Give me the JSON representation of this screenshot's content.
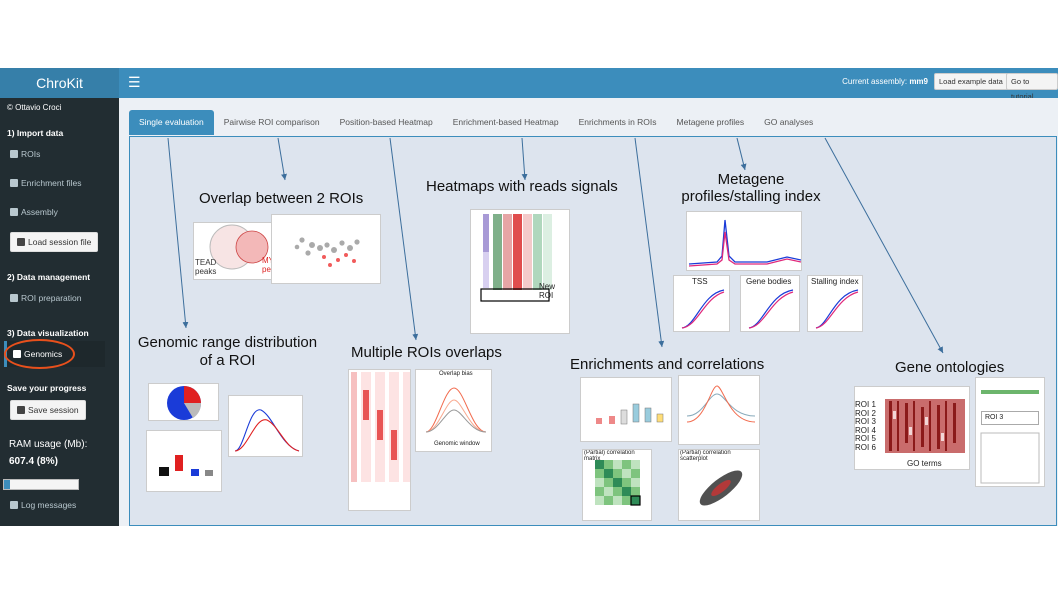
{
  "app": {
    "title": "ChroKit",
    "copyright": "© Ottavio Croci"
  },
  "sidebar": {
    "sections": [
      {
        "label": "1) Import data"
      },
      {
        "label": "2) Data management"
      },
      {
        "label": "3) Data visualization"
      },
      {
        "label": "Save your progress"
      }
    ],
    "items": {
      "rois": "ROIs",
      "enrichment_files": "Enrichment files",
      "assembly": "Assembly",
      "load_session": "Load session file",
      "roi_preparation": "ROI preparation",
      "genomics": "Genomics",
      "save_session": "Save session",
      "log_messages": "Log messages"
    },
    "ram": {
      "label": "RAM usage (Mb):",
      "value": "607.4 (8%)",
      "fraction": 0.08
    }
  },
  "header": {
    "menu_icon": "hamburger-icon",
    "assembly_label": "Current assembly:",
    "assembly_value": "mm9",
    "load_example": "Load example data",
    "tutorial": "Go to tutorial"
  },
  "tabs": [
    {
      "label": "Single evaluation",
      "active": true
    },
    {
      "label": "Pairwise ROI comparison"
    },
    {
      "label": "Position-based Heatmap"
    },
    {
      "label": "Enrichment-based Heatmap"
    },
    {
      "label": "Enrichments in ROIs"
    },
    {
      "label": "Metagene profiles"
    },
    {
      "label": "GO analyses"
    }
  ],
  "annotations": {
    "overlap": "Overlap between 2 ROIs",
    "heatmaps": "Heatmaps with reads signals",
    "metagene": "Metagene profiles/stalling index",
    "genomic_range_1": "Genomic range distribution",
    "genomic_range_2": "of a ROI",
    "multiple": "Multiple ROIs overlaps",
    "enrichments": "Enrichments and correlations",
    "ontologies": "Gene ontologies"
  },
  "thumbs": {
    "venn_left": "TEAD peaks",
    "venn_right": "MYC peaks",
    "new_roi": "New ROI",
    "tss": "TSS",
    "gene_bodies": "Gene bodies",
    "stalling": "Stalling index",
    "go_terms": "GO terms",
    "roi_list": [
      "ROI 1",
      "ROI 2",
      "ROI 3",
      "ROI 4",
      "ROI 5",
      "ROI 6"
    ],
    "roi3": "ROI 3",
    "corr_matrix": "(Partial) correlation matrix",
    "corr_scatter": "(Partial) correlation scatterplot",
    "overlap_bias": "Overlap bias",
    "genomic_window": "Genomic window"
  },
  "colors": {
    "accent": "#3c8dbc",
    "sidebar": "#222d32",
    "highlight_ring": "#e8501c"
  }
}
